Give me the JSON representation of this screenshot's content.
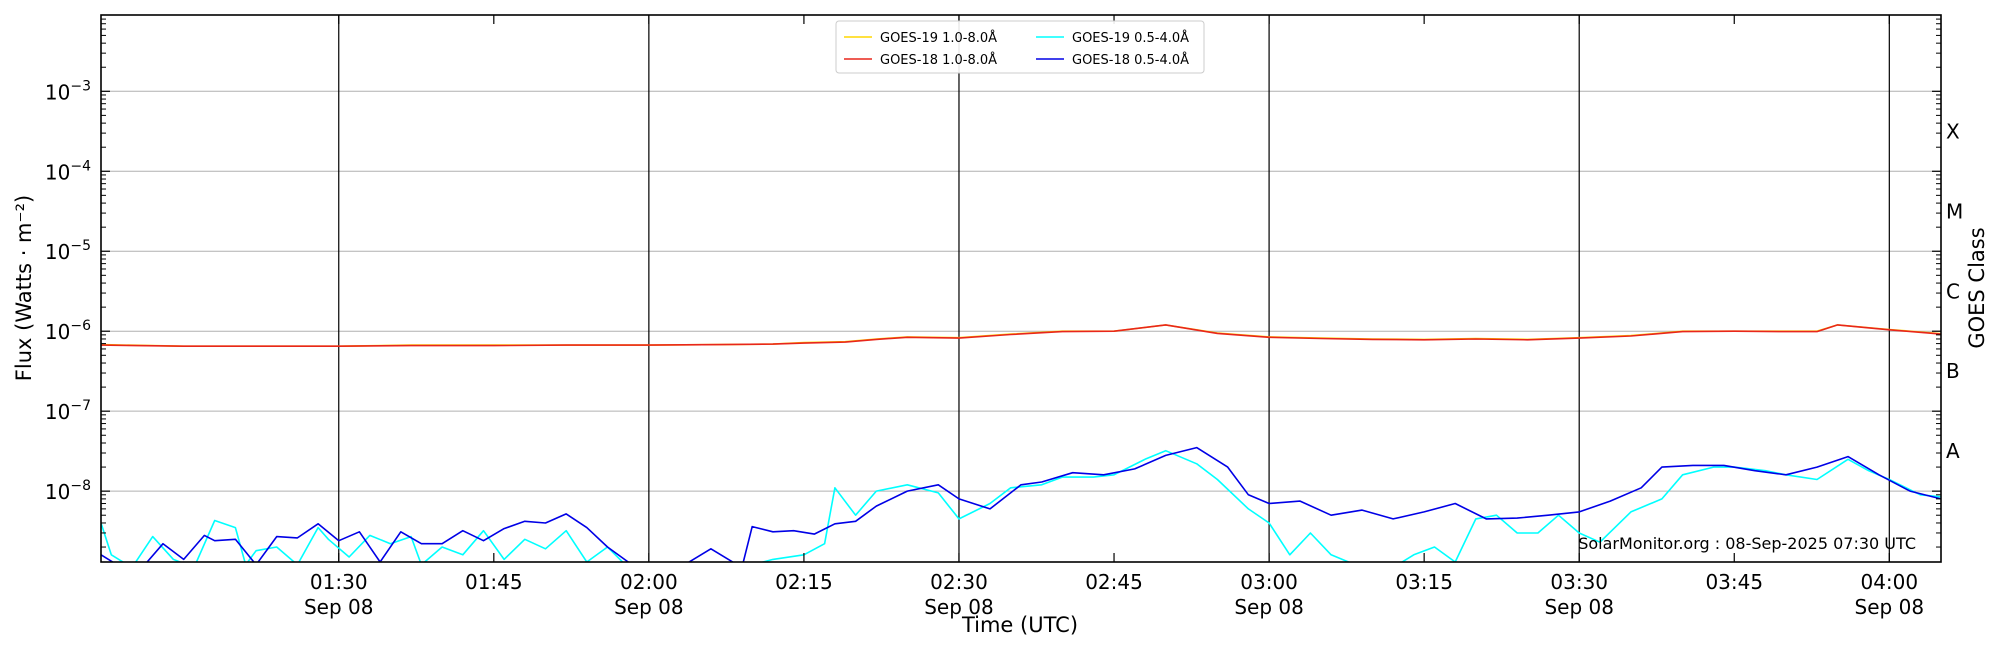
{
  "chart_data": {
    "type": "line",
    "xlabel": "Time (UTC)",
    "ylabel": "Flux (Watts · m⁻²)",
    "y2label": "GOES Class",
    "yscale": "log",
    "ylim": [
      1.3e-09,
      0.009
    ],
    "xlim": [
      "01:07",
      "04:05"
    ],
    "grid": "horizontal at major y ticks",
    "x_ticks": [
      {
        "time": "01:30",
        "label": "01:30",
        "sublabel": "Sep 08",
        "vline": true
      },
      {
        "time": "01:45",
        "label": "01:45",
        "sublabel": "",
        "vline": false
      },
      {
        "time": "02:00",
        "label": "02:00",
        "sublabel": "Sep 08",
        "vline": true
      },
      {
        "time": "02:15",
        "label": "02:15",
        "sublabel": "",
        "vline": false
      },
      {
        "time": "02:30",
        "label": "02:30",
        "sublabel": "Sep 08",
        "vline": true
      },
      {
        "time": "02:45",
        "label": "02:45",
        "sublabel": "",
        "vline": false
      },
      {
        "time": "03:00",
        "label": "03:00",
        "sublabel": "Sep 08",
        "vline": true
      },
      {
        "time": "03:15",
        "label": "03:15",
        "sublabel": "",
        "vline": false
      },
      {
        "time": "03:30",
        "label": "03:30",
        "sublabel": "Sep 08",
        "vline": true
      },
      {
        "time": "03:45",
        "label": "03:45",
        "sublabel": "",
        "vline": false
      },
      {
        "time": "04:00",
        "label": "04:00",
        "sublabel": "Sep 08",
        "vline": true
      }
    ],
    "y_ticks": [
      {
        "value": 1e-08,
        "base": "10",
        "exp": "−8"
      },
      {
        "value": 1e-07,
        "base": "10",
        "exp": "−7"
      },
      {
        "value": 1e-06,
        "base": "10",
        "exp": "−6"
      },
      {
        "value": 1e-05,
        "base": "10",
        "exp": "−5"
      },
      {
        "value": 0.0001,
        "base": "10",
        "exp": "−4"
      },
      {
        "value": 0.001,
        "base": "10",
        "exp": "−3"
      }
    ],
    "goes_classes": [
      {
        "label": "A",
        "value": 3.16e-08
      },
      {
        "label": "B",
        "value": 3.16e-07
      },
      {
        "label": "C",
        "value": 3.16e-06
      },
      {
        "label": "M",
        "value": 3.16e-05
      },
      {
        "label": "X",
        "value": 0.000316
      }
    ],
    "legend": {
      "placement": "top-center",
      "entries": [
        {
          "label": "GOES-19 1.0-8.0Å",
          "color": "#ffd700"
        },
        {
          "label": "GOES-18 1.0-8.0Å",
          "color": "#e8261c"
        },
        {
          "label": "GOES-19 0.5-4.0Å",
          "color": "#00ffff"
        },
        {
          "label": "GOES-18 0.5-4.0Å",
          "color": "#0000e6"
        }
      ]
    },
    "credit": "SolarMonitor.org : 08-Sep-2025 07:30 UTC",
    "series": [
      {
        "name": "GOES-19 1.0-8.0Å",
        "color": "#ffd700",
        "x": [
          "01:07",
          "01:15",
          "01:22",
          "01:30",
          "01:37",
          "01:45",
          "01:52",
          "02:00",
          "02:07",
          "02:12",
          "02:15",
          "02:19",
          "02:22",
          "02:25",
          "02:30",
          "02:35",
          "02:40",
          "02:45",
          "02:50",
          "02:55",
          "03:00",
          "03:05",
          "03:10",
          "03:15",
          "03:20",
          "03:25",
          "03:30",
          "03:35",
          "03:40",
          "03:45",
          "03:50",
          "03:53",
          "03:55",
          "04:00",
          "04:05"
        ],
        "values": [
          6.8e-07,
          6.5e-07,
          6.5e-07,
          6.5e-07,
          6.7e-07,
          6.7e-07,
          6.7e-07,
          6.7e-07,
          6.8e-07,
          6.9e-07,
          7.2e-07,
          7.4e-07,
          8e-07,
          8.5e-07,
          8.3e-07,
          9.2e-07,
          1e-06,
          1e-06,
          1.2e-06,
          9.5e-07,
          8.5e-07,
          8.2e-07,
          8e-07,
          7.9e-07,
          8.1e-07,
          7.9e-07,
          8.3e-07,
          8.8e-07,
          1e-06,
          1e-06,
          1e-06,
          1e-06,
          1.2e-06,
          1.05e-06,
          9.3e-07
        ]
      },
      {
        "name": "GOES-18 1.0-8.0Å",
        "color": "#e8261c",
        "x": [
          "01:07",
          "01:15",
          "01:22",
          "01:30",
          "01:37",
          "01:45",
          "01:52",
          "02:00",
          "02:07",
          "02:12",
          "02:15",
          "02:19",
          "02:22",
          "02:25",
          "02:30",
          "02:35",
          "02:40",
          "02:45",
          "02:50",
          "02:55",
          "03:00",
          "03:05",
          "03:10",
          "03:15",
          "03:20",
          "03:25",
          "03:30",
          "03:35",
          "03:40",
          "03:45",
          "03:50",
          "03:53",
          "03:55",
          "04:00",
          "04:05"
        ],
        "values": [
          6.7e-07,
          6.5e-07,
          6.5e-07,
          6.5e-07,
          6.6e-07,
          6.6e-07,
          6.7e-07,
          6.7e-07,
          6.8e-07,
          6.9e-07,
          7.1e-07,
          7.3e-07,
          7.9e-07,
          8.4e-07,
          8.2e-07,
          9.1e-07,
          9.9e-07,
          1e-06,
          1.2e-06,
          9.4e-07,
          8.4e-07,
          8.1e-07,
          7.9e-07,
          7.8e-07,
          8e-07,
          7.8e-07,
          8.2e-07,
          8.7e-07,
          9.9e-07,
          1e-06,
          9.9e-07,
          9.9e-07,
          1.2e-06,
          1.04e-06,
          9.2e-07
        ]
      },
      {
        "name": "GOES-19 0.5-4.0Å",
        "color": "#00ffff",
        "x": [
          "01:07",
          "01:08",
          "01:10",
          "01:12",
          "01:14",
          "01:16",
          "01:18",
          "01:20",
          "01:21",
          "01:22",
          "01:24",
          "01:26",
          "01:28",
          "01:29",
          "01:31",
          "01:33",
          "01:35",
          "01:37",
          "01:38",
          "01:40",
          "01:42",
          "01:44",
          "01:46",
          "01:48",
          "01:50",
          "01:52",
          "01:54",
          "01:56",
          "01:58",
          "02:00",
          "02:03",
          "02:06",
          "02:09",
          "02:12",
          "02:15",
          "02:17",
          "02:18",
          "02:20",
          "02:22",
          "02:25",
          "02:28",
          "02:30",
          "02:33",
          "02:35",
          "02:38",
          "02:40",
          "02:43",
          "02:45",
          "02:48",
          "02:50",
          "02:53",
          "02:55",
          "02:58",
          "03:00",
          "03:02",
          "03:04",
          "03:06",
          "03:09",
          "03:12",
          "03:14",
          "03:16",
          "03:18",
          "03:20",
          "03:22",
          "03:24",
          "03:26",
          "03:28",
          "03:30",
          "03:32",
          "03:35",
          "03:38",
          "03:40",
          "03:43",
          "03:45",
          "03:48",
          "03:50",
          "03:53",
          "03:56",
          "03:58",
          "04:00",
          "04:03",
          "04:05"
        ],
        "values": [
          4e-09,
          1.6e-09,
          1.1e-09,
          2.7e-09,
          1.4e-09,
          1.1e-09,
          4.3e-09,
          3.5e-09,
          1.2e-09,
          1.8e-09,
          2e-09,
          1.2e-09,
          3.5e-09,
          2.5e-09,
          1.5e-09,
          2.8e-09,
          2.2e-09,
          2.7e-09,
          1.2e-09,
          2e-09,
          1.6e-09,
          3.2e-09,
          1.4e-09,
          2.5e-09,
          1.9e-09,
          3.2e-09,
          1.3e-09,
          2e-09,
          1.1e-09,
          1e-09,
          1e-09,
          1.1e-09,
          1e-09,
          1.4e-09,
          1.6e-09,
          2.2e-09,
          1.1e-08,
          5e-09,
          1e-08,
          1.2e-08,
          9.5e-09,
          4.5e-09,
          7e-09,
          1.1e-08,
          1.2e-08,
          1.5e-08,
          1.5e-08,
          1.6e-08,
          2.5e-08,
          3.2e-08,
          2.2e-08,
          1.4e-08,
          6e-09,
          4e-09,
          1.6e-09,
          3e-09,
          1.6e-09,
          1e-09,
          1e-09,
          1.6e-09,
          2e-09,
          1.3e-09,
          4.5e-09,
          5e-09,
          3e-09,
          3e-09,
          5e-09,
          3e-09,
          2.3e-09,
          5.5e-09,
          8e-09,
          1.6e-08,
          2e-08,
          2e-08,
          1.8e-08,
          1.6e-08,
          1.4e-08,
          2.5e-08,
          1.8e-08,
          1.4e-08,
          9e-09,
          8.5e-09
        ]
      },
      {
        "name": "GOES-18 0.5-4.0Å",
        "color": "#0000e6",
        "x": [
          "01:07",
          "01:09",
          "01:11",
          "01:13",
          "01:15",
          "01:17",
          "01:18",
          "01:20",
          "01:22",
          "01:24",
          "01:26",
          "01:28",
          "01:30",
          "01:32",
          "01:34",
          "01:36",
          "01:38",
          "01:40",
          "01:42",
          "01:44",
          "01:46",
          "01:48",
          "01:50",
          "01:52",
          "01:54",
          "01:56",
          "01:58",
          "02:00",
          "02:03",
          "02:06",
          "02:09",
          "02:10",
          "02:12",
          "02:14",
          "02:16",
          "02:18",
          "02:20",
          "02:22",
          "02:25",
          "02:28",
          "02:30",
          "02:33",
          "02:36",
          "02:38",
          "02:41",
          "02:44",
          "02:47",
          "02:50",
          "02:53",
          "02:56",
          "02:58",
          "03:00",
          "03:03",
          "03:06",
          "03:09",
          "03:12",
          "03:15",
          "03:18",
          "03:21",
          "03:24",
          "03:27",
          "03:30",
          "03:33",
          "03:36",
          "03:38",
          "03:41",
          "03:44",
          "03:47",
          "03:50",
          "03:53",
          "03:56",
          "03:59",
          "04:02",
          "04:05"
        ],
        "values": [
          1.6e-09,
          1e-09,
          1.1e-09,
          2.2e-09,
          1.4e-09,
          2.8e-09,
          2.4e-09,
          2.5e-09,
          1.2e-09,
          2.7e-09,
          2.6e-09,
          3.9e-09,
          2.4e-09,
          3.1e-09,
          1.3e-09,
          3.1e-09,
          2.2e-09,
          2.2e-09,
          3.2e-09,
          2.4e-09,
          3.4e-09,
          4.2e-09,
          4e-09,
          5.2e-09,
          3.5e-09,
          2e-09,
          1.3e-09,
          1e-09,
          1.1e-09,
          1.9e-09,
          1.1e-09,
          3.6e-09,
          3.1e-09,
          3.2e-09,
          2.9e-09,
          3.9e-09,
          4.2e-09,
          6.5e-09,
          1e-08,
          1.2e-08,
          8e-09,
          6e-09,
          1.2e-08,
          1.3e-08,
          1.7e-08,
          1.6e-08,
          1.9e-08,
          2.8e-08,
          3.5e-08,
          2e-08,
          9e-09,
          7e-09,
          7.5e-09,
          5e-09,
          5.8e-09,
          4.5e-09,
          5.5e-09,
          7e-09,
          4.5e-09,
          4.6e-09,
          5e-09,
          5.5e-09,
          7.5e-09,
          1.1e-08,
          2e-08,
          2.1e-08,
          2.1e-08,
          1.8e-08,
          1.6e-08,
          2e-08,
          2.7e-08,
          1.6e-08,
          1e-08,
          8e-09
        ]
      }
    ]
  }
}
